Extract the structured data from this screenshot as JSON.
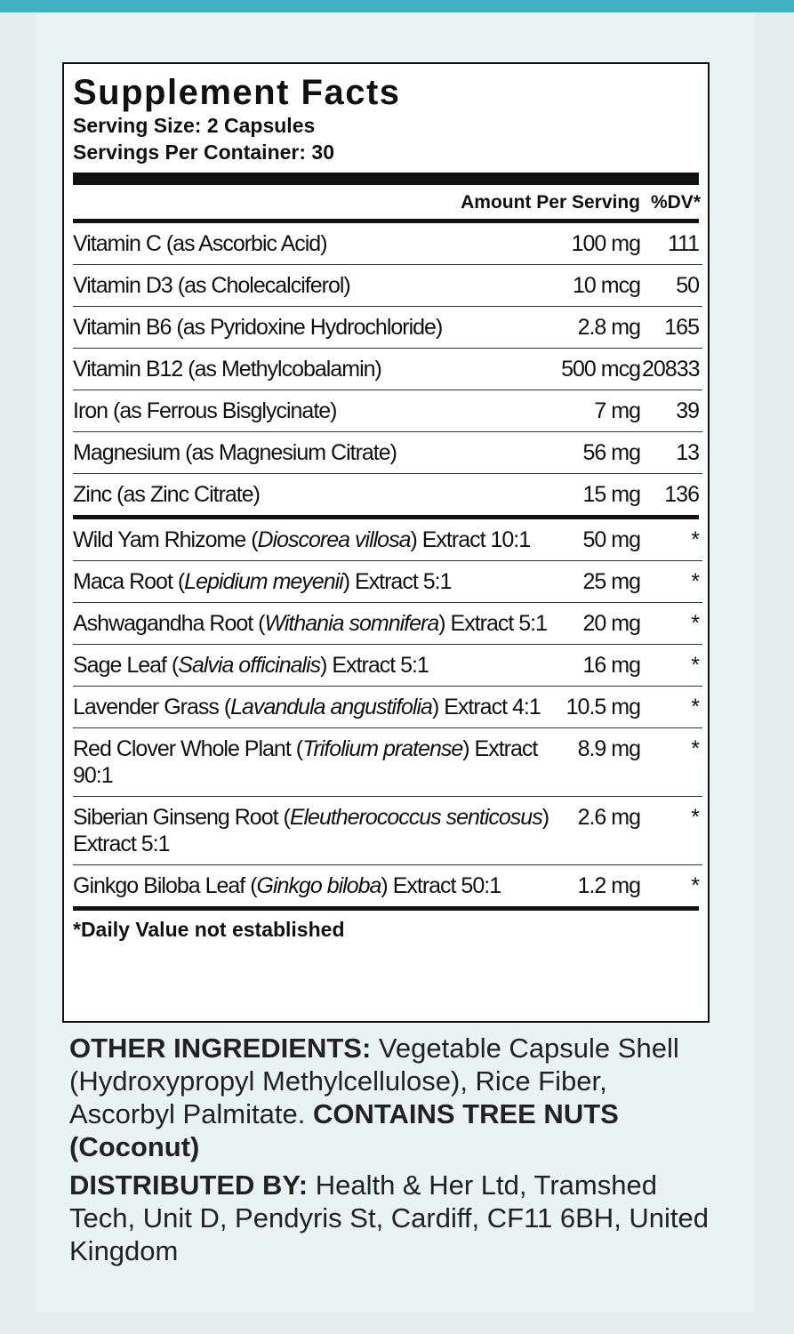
{
  "header": {
    "title": "Supplement Facts",
    "serving_size": "Serving Size: 2 Capsules",
    "servings_per_container": "Servings Per Container: 30"
  },
  "table": {
    "columns": [
      "Amount Per Serving",
      "%DV*"
    ],
    "vitamins": [
      {
        "name": "Vitamin C (as Ascorbic Acid)",
        "amount": "100 mg",
        "dv": "111"
      },
      {
        "name": "Vitamin D3 (as Cholecalciferol)",
        "amount": "10 mcg",
        "dv": "50"
      },
      {
        "name": "Vitamin B6 (as Pyridoxine Hydrochloride)",
        "amount": "2.8 mg",
        "dv": "165"
      },
      {
        "name": "Vitamin B12 (as Methylcobalamin)",
        "amount": "500 mcg",
        "dv": "20833"
      },
      {
        "name": "Iron (as Ferrous Bisglycinate)",
        "amount": "7 mg",
        "dv": "39"
      },
      {
        "name": "Magnesium (as Magnesium Citrate)",
        "amount": "56 mg",
        "dv": "13"
      },
      {
        "name": "Zinc (as Zinc Citrate)",
        "amount": "15 mg",
        "dv": "136"
      }
    ],
    "botanicals": [
      {
        "before": "Wild Yam Rhizome (",
        "latin": "Dioscorea villosa",
        "after": ") Extract 10:1",
        "amount": "50 mg",
        "dv": "*"
      },
      {
        "before": "Maca Root (",
        "latin": "Lepidium meyenii",
        "after": ") Extract 5:1",
        "amount": "25 mg",
        "dv": "*"
      },
      {
        "before": "Ashwagandha Root (",
        "latin": "Withania somnifera",
        "after": ") Extract 5:1",
        "amount": "20 mg",
        "dv": "*"
      },
      {
        "before": "Sage Leaf (",
        "latin": "Salvia officinalis",
        "after": ") Extract 5:1",
        "amount": "16 mg",
        "dv": "*"
      },
      {
        "before": "Lavender Grass (",
        "latin": "Lavandula angustifolia",
        "after": ") Extract 4:1",
        "amount": "10.5 mg",
        "dv": "*"
      },
      {
        "before": "Red Clover Whole Plant (",
        "latin": "Trifolium pratense",
        "after": ") Extract 90:1",
        "amount": "8.9 mg",
        "dv": "*"
      },
      {
        "before": "Siberian Ginseng Root (",
        "latin": "Eleutherococcus senticosus",
        "after": ") Extract 5:1",
        "amount": "2.6 mg",
        "dv": "*"
      },
      {
        "before": "Ginkgo Biloba Leaf (",
        "latin": "Ginkgo biloba",
        "after": ") Extract 50:1",
        "amount": "1.2 mg",
        "dv": "*"
      }
    ],
    "footnote": "*Daily Value not established"
  },
  "other_ingredients": {
    "label": "OTHER INGREDIENTS:",
    "text": " Vegetable Capsule Shell (Hydroxypropyl Methylcellulose), Rice Fiber, Ascorbyl Palmitate. ",
    "warning": "CONTAINS TREE NUTS (Coconut)"
  },
  "distributor": {
    "label": "DISTRIBUTED BY:",
    "text": " Health & Her Ltd, Tramshed Tech, Unit D, Pendyris St, Cardiff, CF11 6BH, United Kingdom"
  }
}
